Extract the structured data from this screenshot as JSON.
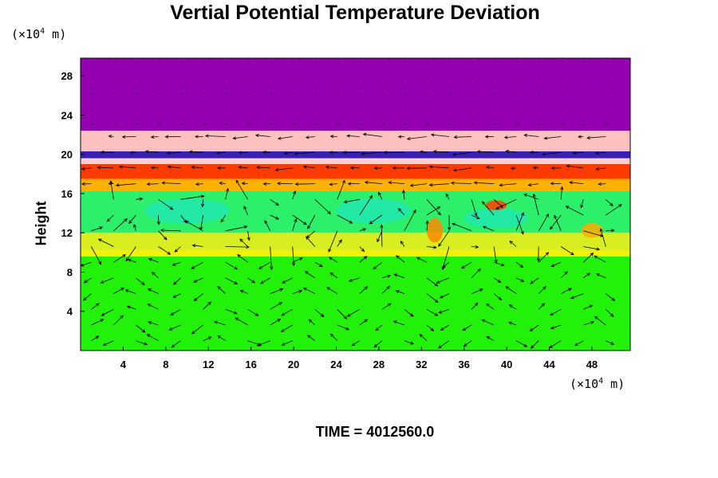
{
  "chart_data": {
    "type": "heatmap",
    "title": "Vertial Potential Temperature Deviation",
    "ylabel": "Height",
    "xlabel": "",
    "y_unit": {
      "prefix": "(×10",
      "exp": "4",
      "suffix": " m)"
    },
    "x_unit": {
      "prefix": "(×10",
      "exp": "4",
      "suffix": " m)"
    },
    "xlim": [
      0,
      51.6
    ],
    "ylim": [
      0,
      29.8
    ],
    "x_ticks": [
      4,
      8,
      12,
      16,
      20,
      24,
      28,
      32,
      36,
      40,
      44,
      48
    ],
    "y_ticks": [
      4,
      8,
      12,
      16,
      20,
      24,
      28
    ],
    "layers": [
      {
        "y0": 0,
        "y1": 9.6,
        "color": "#22f20a"
      },
      {
        "y0": 9.6,
        "y1": 10.2,
        "color": "#f3f000"
      },
      {
        "y0": 10.2,
        "y1": 12.0,
        "color": "#d8ee20"
      },
      {
        "y0": 12.0,
        "y1": 16.3,
        "color": "#2cf06a"
      },
      {
        "y0": 16.3,
        "y1": 17.5,
        "color": "#ffb000"
      },
      {
        "y0": 17.5,
        "y1": 19.0,
        "color": "#ff3a00"
      },
      {
        "y0": 19.0,
        "y1": 19.6,
        "color": "#ffd0d0"
      },
      {
        "y0": 19.6,
        "y1": 20.3,
        "color": "#3a20b0"
      },
      {
        "y0": 20.3,
        "y1": 22.4,
        "color": "#ffc0c0"
      },
      {
        "y0": 22.4,
        "y1": 29.8,
        "color": "#9400b0"
      }
    ],
    "patches": [
      {
        "x0": 6,
        "x1": 14,
        "y0": 13,
        "y1": 15.5,
        "color": "#22e8b0"
      },
      {
        "x0": 24,
        "x1": 31,
        "y0": 13,
        "y1": 15.5,
        "color": "#22e8b0"
      },
      {
        "x0": 36,
        "x1": 42,
        "y0": 12.5,
        "y1": 14.5,
        "color": "#22e8b0"
      },
      {
        "x0": 32.5,
        "x1": 34,
        "y0": 11,
        "y1": 13.5,
        "color": "#ff8800"
      },
      {
        "x0": 47,
        "x1": 49,
        "y0": 11.5,
        "y1": 13,
        "color": "#ffaa00"
      },
      {
        "x0": 38,
        "x1": 40,
        "y0": 14.3,
        "y1": 15.3,
        "color": "#ff4000"
      }
    ]
  },
  "time_label": "TIME = 4012560.0"
}
